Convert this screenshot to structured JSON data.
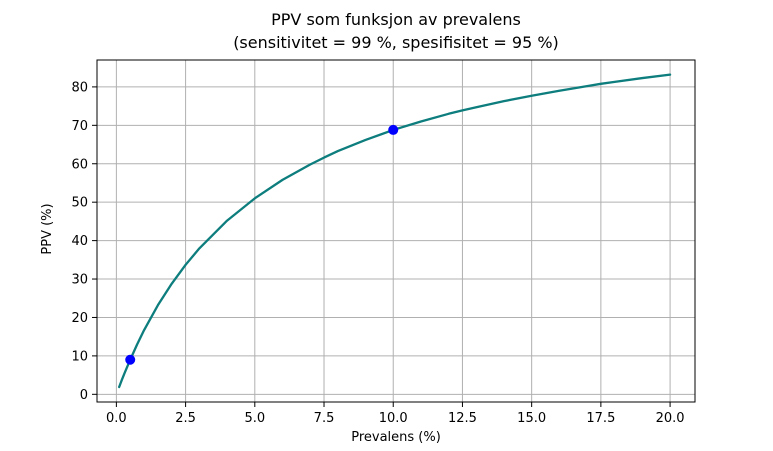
{
  "chart_data": {
    "type": "line",
    "title": "PPV som funksjon av prevalens",
    "subtitle": "(sensitivitet = 99 %, spesifisitet = 95 %)",
    "xlabel": "Prevalens (%)",
    "ylabel": "PPV (%)",
    "xlim": [
      -0.7,
      20.9
    ],
    "ylim": [
      -2,
      87
    ],
    "xticks": [
      0.0,
      2.5,
      5.0,
      7.5,
      10.0,
      12.5,
      15.0,
      17.5,
      20.0
    ],
    "xtick_labels": [
      "0.0",
      "2.5",
      "5.0",
      "7.5",
      "10.0",
      "12.5",
      "15.0",
      "17.5",
      "20.0"
    ],
    "yticks": [
      0,
      10,
      20,
      30,
      40,
      50,
      60,
      70,
      80
    ],
    "ytick_labels": [
      "0",
      "10",
      "20",
      "30",
      "40",
      "50",
      "60",
      "70",
      "80"
    ],
    "grid": true,
    "series": [
      {
        "x": [
          0.1,
          0.2,
          0.3,
          0.5,
          0.75,
          1.0,
          1.5,
          2.0,
          2.5,
          3.0,
          4.0,
          5.0,
          6.0,
          7.0,
          7.5,
          8.0,
          9.0,
          10.0,
          11.0,
          12.0,
          12.5,
          13.0,
          14.0,
          15.0,
          16.0,
          17.0,
          17.5,
          18.0,
          19.0,
          20.0
        ],
        "y": [
          1.9,
          3.8,
          5.6,
          9.0,
          13.0,
          16.7,
          23.2,
          28.8,
          33.7,
          38.0,
          45.2,
          51.0,
          55.8,
          59.8,
          61.6,
          63.3,
          66.2,
          68.8,
          71.0,
          73.0,
          73.9,
          74.7,
          76.3,
          77.7,
          79.0,
          80.2,
          80.8,
          81.3,
          82.3,
          83.2
        ],
        "color": "#0d7d7d"
      }
    ],
    "highlighted_points": {
      "x": [
        0.5,
        10.0
      ],
      "y": [
        9.0,
        68.8
      ],
      "color": "#0000ff"
    }
  }
}
